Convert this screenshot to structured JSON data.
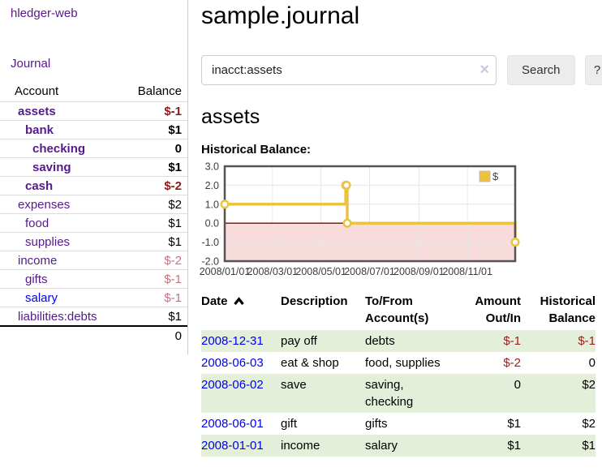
{
  "app": {
    "brand": "hledger-web",
    "nav": {
      "journal": "Journal"
    }
  },
  "colors": {
    "link_purple": "#551A8B",
    "link_blue": "#0000EE",
    "negative_strong": "#8C1A1A",
    "negative_soft": "#C4727C",
    "register_row_green": "#e4efda",
    "chart_series_gold": "#EDC240"
  },
  "icons": {
    "clear_search": "×",
    "sort_date": "chevron-up-icon",
    "legend_swatch": "gold-square-icon"
  },
  "sidebar": {
    "header": {
      "account": "Account",
      "balance": "Balance"
    },
    "accounts": [
      {
        "name": "assets",
        "depth": 1,
        "balance": "$-1",
        "bold": true,
        "negative": true,
        "blue": false
      },
      {
        "name": "bank",
        "depth": 2,
        "balance": "$1",
        "bold": true,
        "negative": false,
        "blue": false
      },
      {
        "name": "checking",
        "depth": 3,
        "balance": "0",
        "bold": true,
        "negative": false,
        "blue": false
      },
      {
        "name": "saving",
        "depth": 3,
        "balance": "$1",
        "bold": true,
        "negative": false,
        "blue": false
      },
      {
        "name": "cash",
        "depth": 2,
        "balance": "$-2",
        "bold": true,
        "negative": true,
        "blue": false
      },
      {
        "name": "expenses",
        "depth": 1,
        "balance": "$2",
        "bold": false,
        "negative": false,
        "blue": false
      },
      {
        "name": "food",
        "depth": 2,
        "balance": "$1",
        "bold": false,
        "negative": false,
        "blue": false
      },
      {
        "name": "supplies",
        "depth": 2,
        "balance": "$1",
        "bold": false,
        "negative": false,
        "blue": false
      },
      {
        "name": "income",
        "depth": 1,
        "balance": "$-2",
        "bold": false,
        "negative": true,
        "blue": false
      },
      {
        "name": "gifts",
        "depth": 2,
        "balance": "$-1",
        "bold": false,
        "negative": true,
        "blue": false
      },
      {
        "name": "salary",
        "depth": 2,
        "balance": "$-1",
        "bold": false,
        "negative": true,
        "blue": true
      },
      {
        "name": "liabilities:debts",
        "depth": 1,
        "balance": "$1",
        "bold": false,
        "negative": false,
        "blue": false
      }
    ],
    "total": "0"
  },
  "main": {
    "title": "sample.journal",
    "search": {
      "value": "inacct:assets",
      "clear_glyph": "×",
      "search_button": "Search",
      "help_button": "?"
    },
    "account_heading": "assets",
    "chart_title": "Historical Balance:",
    "register": {
      "headers": {
        "date": "Date",
        "description": "Description",
        "accounts": "To/From Account(s)",
        "amount": "Amount Out/In",
        "balance": "Historical Balance"
      },
      "rows": [
        {
          "date": "2008-12-31",
          "description": "pay off",
          "accounts": "debts",
          "amount": "$-1",
          "amount_negative": true,
          "balance": "$-1",
          "balance_negative": true
        },
        {
          "date": "2008-06-03",
          "description": "eat & shop",
          "accounts": "food, supplies",
          "amount": "$-2",
          "amount_negative": true,
          "balance": "0",
          "balance_negative": false
        },
        {
          "date": "2008-06-02",
          "description": "save",
          "accounts": "saving, checking",
          "amount": "0",
          "amount_negative": false,
          "balance": "$2",
          "balance_negative": false
        },
        {
          "date": "2008-06-01",
          "description": "gift",
          "accounts": "gifts",
          "amount": "$1",
          "amount_negative": false,
          "balance": "$2",
          "balance_negative": false
        },
        {
          "date": "2008-01-01",
          "description": "income",
          "accounts": "salary",
          "amount": "$1",
          "amount_negative": false,
          "balance": "$1",
          "balance_negative": false
        }
      ]
    }
  },
  "chart_data": {
    "type": "line",
    "title": "Historical Balance:",
    "steps": true,
    "series": [
      {
        "name": "$",
        "color": "#EDC240",
        "points": [
          {
            "date": "2008-01-01",
            "value": 1
          },
          {
            "date": "2008-06-01",
            "value": 2
          },
          {
            "date": "2008-06-02",
            "value": 2
          },
          {
            "date": "2008-06-03",
            "value": 0
          },
          {
            "date": "2008-12-31",
            "value": -1
          }
        ]
      }
    ],
    "xlim": [
      "2008-01-01",
      "2008-12-31"
    ],
    "ylim": [
      -2,
      3
    ],
    "x_ticks": [
      {
        "date": "2008-01-01",
        "label": "2008/01/01"
      },
      {
        "date": "2008-03-01",
        "label": "2008/03/01"
      },
      {
        "date": "2008-05-01",
        "label": "2008/05/01"
      },
      {
        "date": "2008-07-01",
        "label": "2008/07/01"
      },
      {
        "date": "2008-09-01",
        "label": "2008/09/01"
      },
      {
        "date": "2008-11-01",
        "label": "2008/11/01"
      }
    ],
    "y_ticks": [
      3,
      2,
      1,
      0,
      -1,
      -2
    ],
    "grid": true,
    "legend": {
      "label": "$",
      "position": "top-right"
    },
    "zero_line_color": "#8B0000",
    "negative_region_color": "#F8DCDC",
    "axis_color": "#3c3c3c",
    "border_color": "#545454",
    "gridline_color": "#e6e6e6"
  }
}
